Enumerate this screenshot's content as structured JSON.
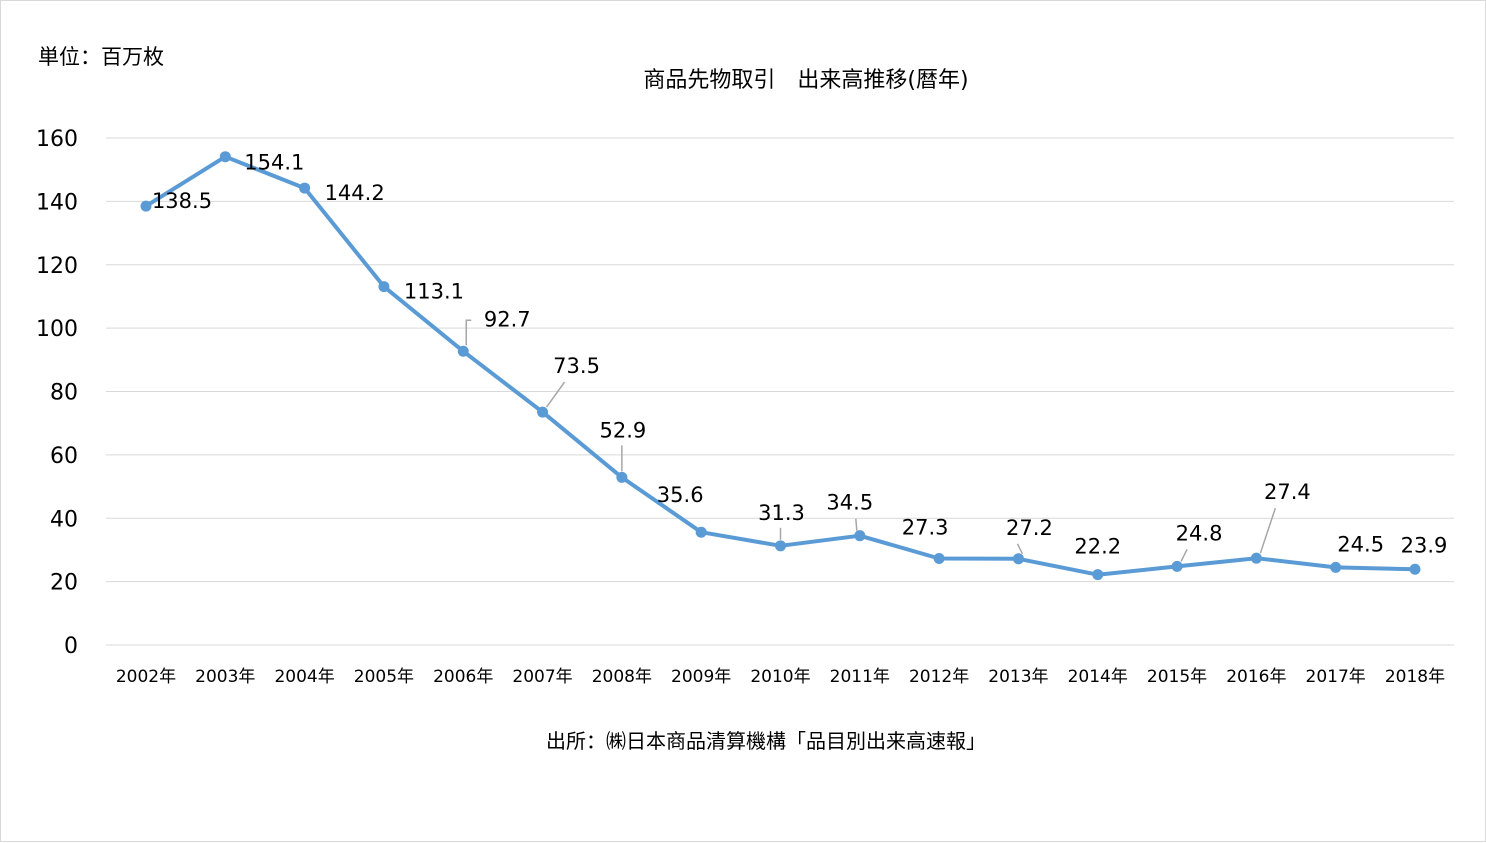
{
  "chart_data": {
    "type": "line",
    "title": "商品先物取引　出来高推移(暦年)",
    "unit_label": "単位：百万枚",
    "source": "出所：㈱日本商品清算機構「品目別出来高速報」",
    "categories": [
      "2002年",
      "2003年",
      "2004年",
      "2005年",
      "2006年",
      "2007年",
      "2008年",
      "2009年",
      "2010年",
      "2011年",
      "2012年",
      "2013年",
      "2014年",
      "2015年",
      "2016年",
      "2017年",
      "2018年"
    ],
    "values": [
      138.5,
      154.1,
      144.2,
      113.1,
      92.7,
      73.5,
      52.9,
      35.6,
      31.3,
      34.5,
      27.3,
      27.2,
      22.2,
      24.8,
      27.4,
      24.5,
      23.9
    ],
    "ylim": [
      0,
      160
    ],
    "yticks": [
      0,
      20,
      40,
      60,
      80,
      100,
      120,
      140,
      160
    ],
    "grid": true,
    "legend": "none",
    "line_color": "#5b9bd5",
    "grid_color": "#d9d9d9",
    "leader_color": "#a6a6a6"
  }
}
